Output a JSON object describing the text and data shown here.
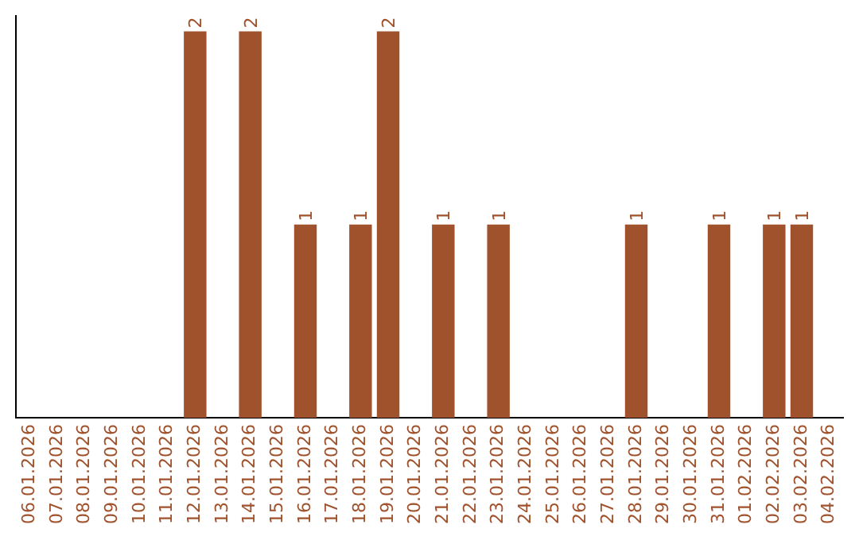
{
  "chart_data": {
    "type": "bar",
    "categories": [
      "06.01.2026",
      "07.01.2026",
      "08.01.2026",
      "09.01.2026",
      "10.01.2026",
      "11.01.2026",
      "12.01.2026",
      "13.01.2026",
      "14.01.2026",
      "15.01.2026",
      "16.01.2026",
      "17.01.2026",
      "18.01.2026",
      "19.01.2026",
      "20.01.2026",
      "21.01.2026",
      "22.01.2026",
      "23.01.2026",
      "24.01.2026",
      "25.01.2026",
      "26.01.2026",
      "27.01.2026",
      "28.01.2026",
      "29.01.2026",
      "30.01.2026",
      "31.01.2026",
      "01.02.2026",
      "02.02.2026",
      "03.02.2026",
      "04.02.2026"
    ],
    "values": [
      0,
      0,
      0,
      0,
      0,
      0,
      2,
      0,
      2,
      0,
      1,
      0,
      1,
      2,
      0,
      1,
      0,
      1,
      0,
      0,
      0,
      0,
      1,
      0,
      0,
      1,
      0,
      1,
      1,
      0
    ],
    "value_labels": [
      null,
      null,
      null,
      null,
      null,
      null,
      "2",
      null,
      "2",
      null,
      "1",
      null,
      "1",
      "2",
      null,
      "1",
      null,
      "1",
      null,
      null,
      null,
      null,
      "1",
      null,
      null,
      "1",
      null,
      "1",
      "1",
      null
    ],
    "color": "#a0522d",
    "grid": false,
    "legend": false,
    "tick_labels": "x"
  }
}
